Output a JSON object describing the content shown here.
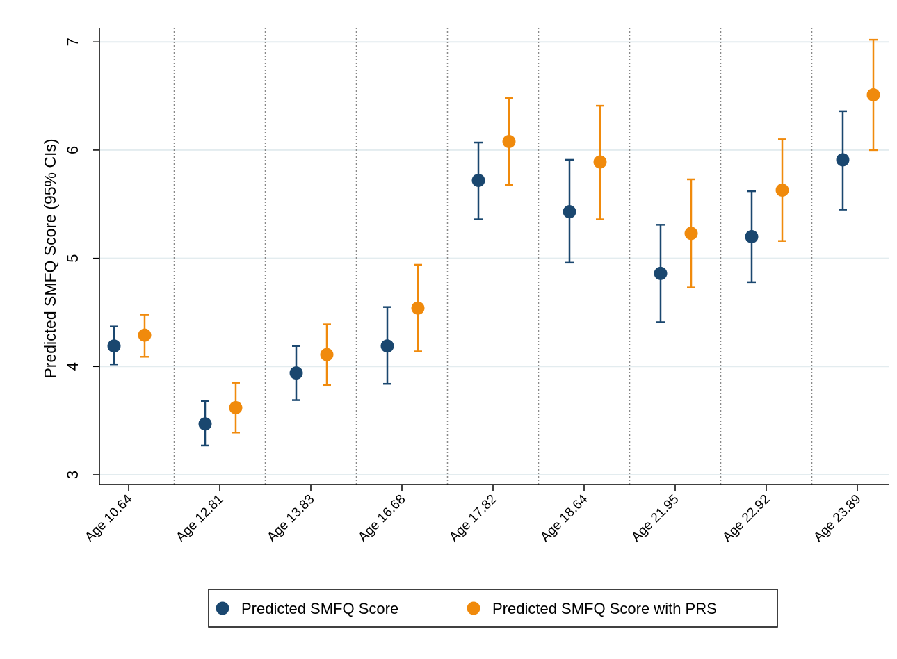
{
  "chart_data": {
    "type": "dot-errorbar",
    "y_label": "Predicted SMFQ Score (95% CIs)",
    "categories": [
      "Age 10.64",
      "Age 12.81",
      "Age 13.83",
      "Age 16.68",
      "Age 17.82",
      "Age 18.64",
      "Age 21.95",
      "Age 22.92",
      "Age 23.89"
    ],
    "series": [
      {
        "name": "Predicted SMFQ Score",
        "color": "#1a476f",
        "values": [
          4.19,
          3.47,
          3.94,
          4.19,
          5.72,
          5.43,
          4.86,
          5.2,
          5.91
        ],
        "lower": [
          4.02,
          3.27,
          3.69,
          3.84,
          5.36,
          4.96,
          4.41,
          4.78,
          5.45
        ],
        "upper": [
          4.37,
          3.68,
          4.19,
          4.55,
          6.07,
          5.91,
          5.31,
          5.62,
          6.36
        ]
      },
      {
        "name": "Predicted SMFQ Score with PRS",
        "color": "#f08a0c",
        "values": [
          4.29,
          3.62,
          4.11,
          4.54,
          6.08,
          5.89,
          5.23,
          5.63,
          6.51
        ],
        "lower": [
          4.09,
          3.39,
          3.83,
          4.14,
          5.68,
          5.36,
          4.73,
          5.16,
          6.0
        ],
        "upper": [
          4.48,
          3.85,
          4.39,
          4.94,
          6.48,
          6.41,
          5.73,
          6.1,
          7.02
        ]
      }
    ],
    "ylim": [
      2.91,
      7.13
    ],
    "yticks": [
      3,
      4,
      5,
      6,
      7
    ],
    "grid": true,
    "legend": "bottom"
  }
}
